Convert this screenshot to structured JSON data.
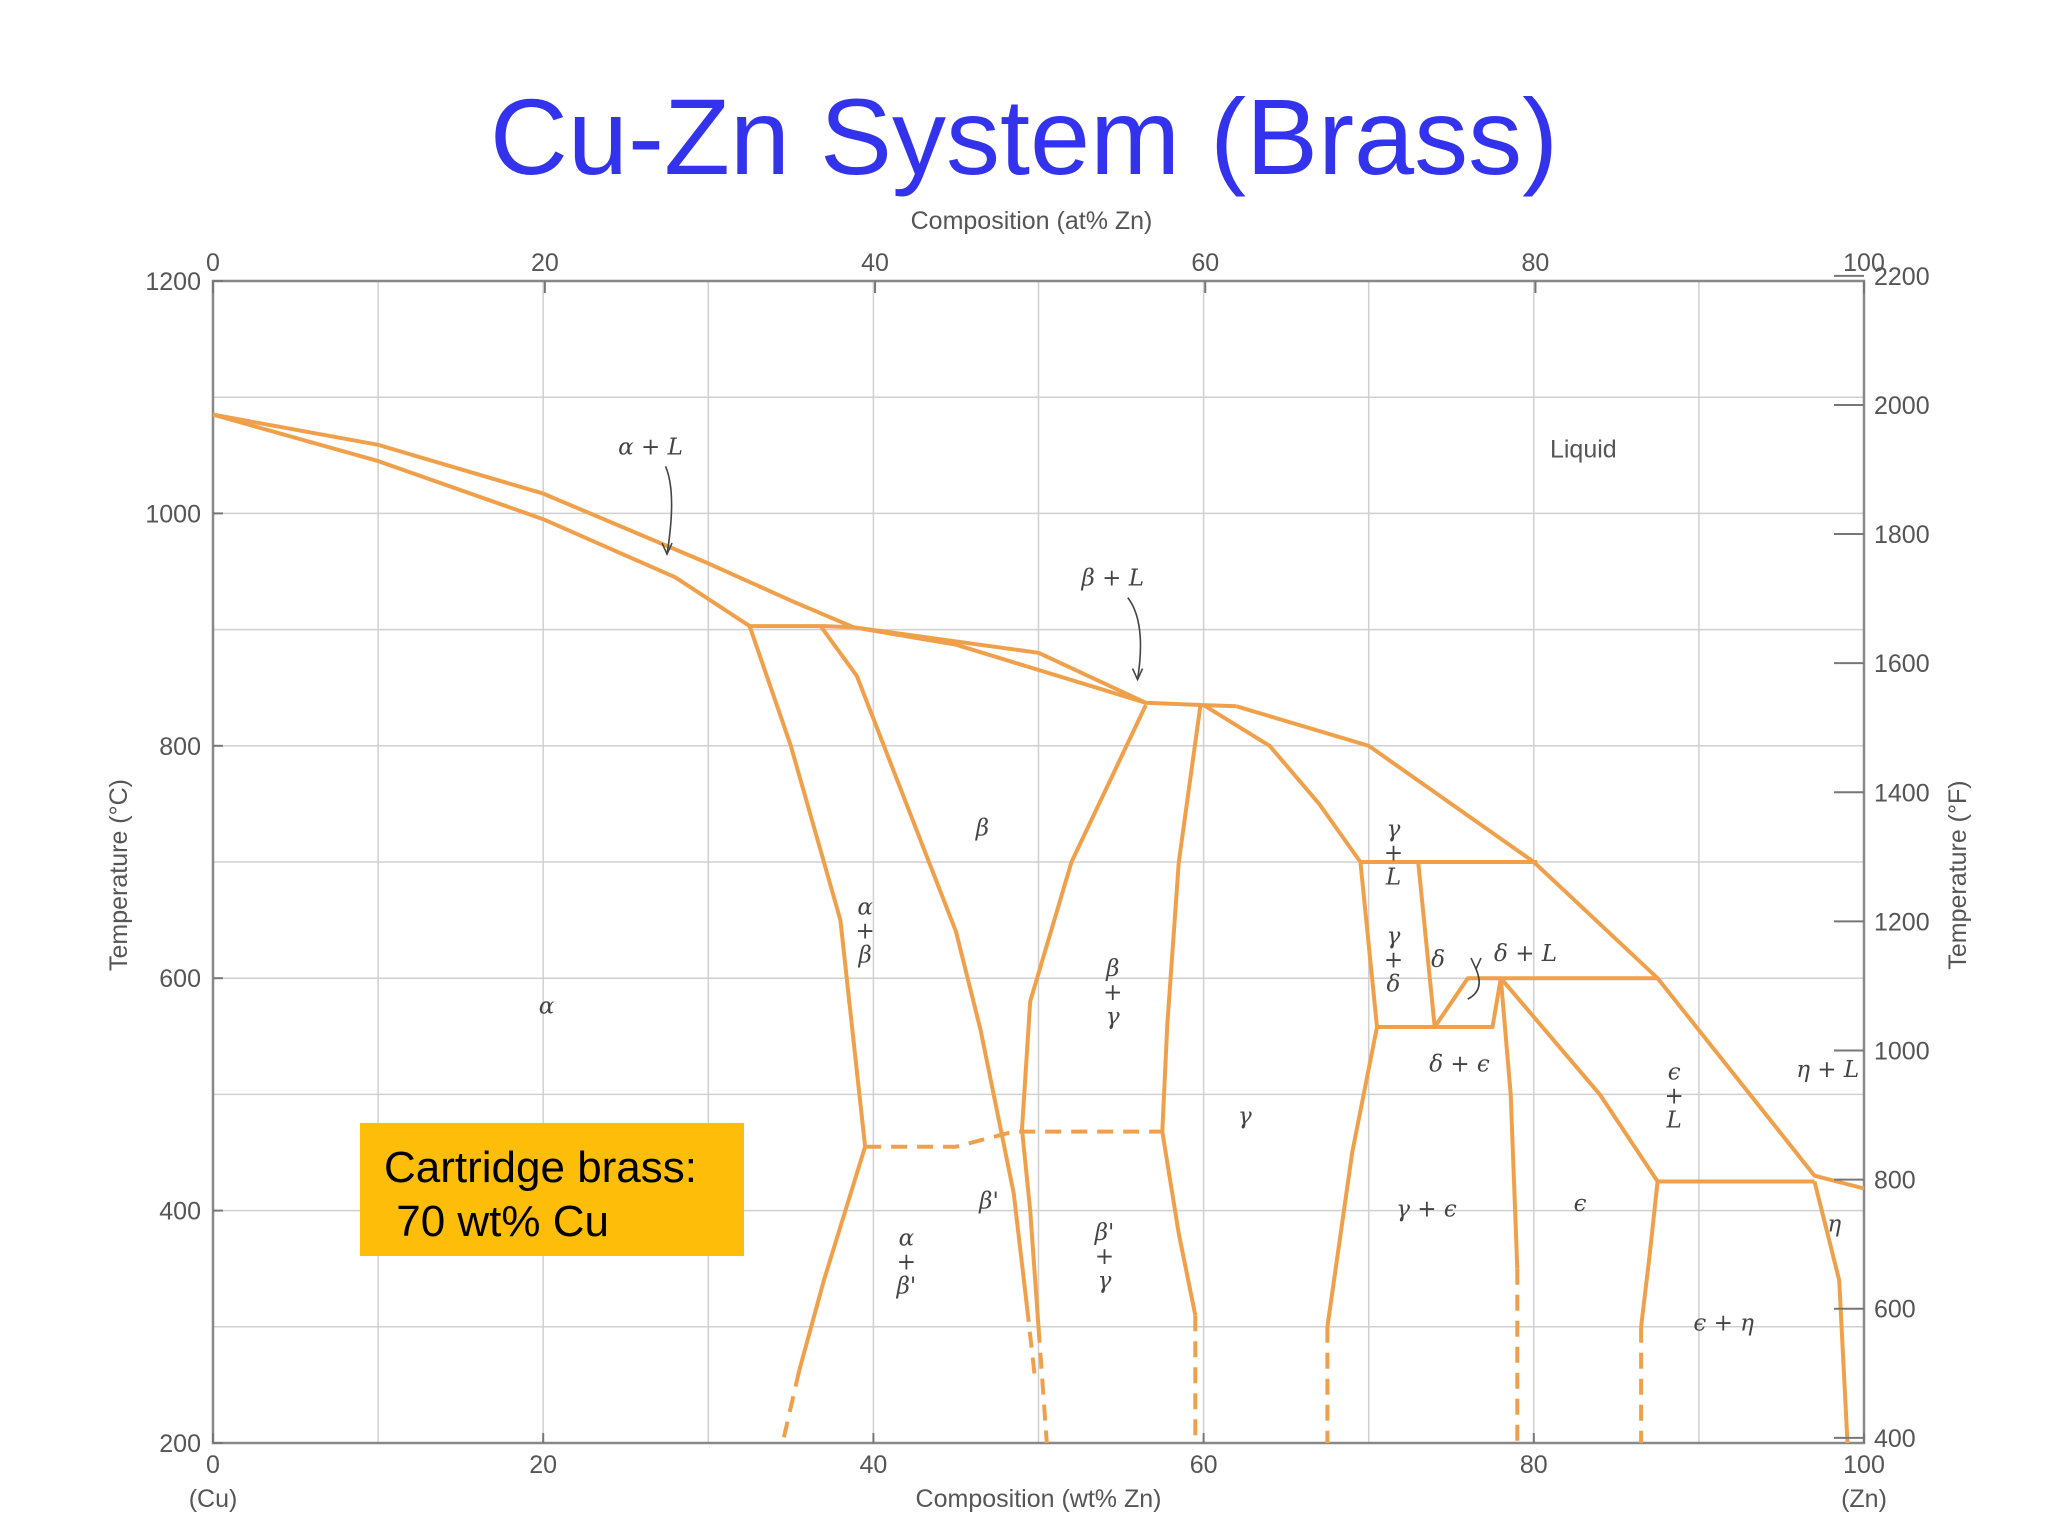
{
  "title": "Cu-Zn System (Brass)",
  "annotation": {
    "line1": "Cartridge brass:",
    "line2": " 70 wt% Cu"
  },
  "colors": {
    "phase_line": "#f0a04a",
    "title": "#3333ee",
    "annotation_bg": "#fdbd08"
  },
  "chart_data": {
    "type": "phase-diagram",
    "title": "",
    "xlabel": "Composition (wt% Zn)",
    "x2label": "Composition (at% Zn)",
    "ylabel": "Temperature (°C)",
    "y2label": "Temperature (°F)",
    "xlim": [
      0,
      100
    ],
    "ylim": [
      200,
      1200
    ],
    "y2lim": [
      392,
      2192
    ],
    "x_ticks": [
      "0",
      "20",
      "40",
      "60",
      "80",
      "100"
    ],
    "x_end_labels": {
      "left": "(Cu)",
      "right": "(Zn)"
    },
    "x2_ticks": [
      {
        "label": "0",
        "wt": 0
      },
      {
        "label": "20",
        "wt": 20.1
      },
      {
        "label": "40",
        "wt": 40.1
      },
      {
        "label": "60",
        "wt": 60.1
      },
      {
        "label": "80",
        "wt": 80.1
      },
      {
        "label": "100",
        "wt": 100
      }
    ],
    "y_ticks": [
      "200",
      "400",
      "600",
      "800",
      "1000",
      "1200"
    ],
    "y2_ticks": [
      "400",
      "600",
      "800",
      "1000",
      "1200",
      "1400",
      "1600",
      "1800",
      "2000",
      "2200"
    ],
    "grid": true,
    "boundaries": [
      {
        "style": "solid",
        "points": [
          [
            0,
            1085
          ],
          [
            10,
            1059
          ],
          [
            20,
            1017
          ],
          [
            30,
            957
          ],
          [
            35,
            925
          ],
          [
            38.8,
            902
          ]
        ]
      },
      {
        "style": "solid",
        "points": [
          [
            0,
            1085
          ],
          [
            10,
            1045
          ],
          [
            20,
            995
          ],
          [
            28,
            945
          ],
          [
            32.5,
            903
          ]
        ]
      },
      {
        "style": "solid",
        "points": [
          [
            32.5,
            903
          ],
          [
            37,
            903
          ],
          [
            38.8,
            902
          ],
          [
            50,
            880
          ],
          [
            56.5,
            837
          ],
          [
            60,
            835
          ],
          [
            62,
            834
          ]
        ]
      },
      {
        "style": "solid",
        "points": [
          [
            38.8,
            902
          ],
          [
            45,
            887
          ],
          [
            56.5,
            837
          ]
        ]
      },
      {
        "style": "solid",
        "points": [
          [
            32.5,
            903
          ],
          [
            35,
            800
          ],
          [
            38,
            650
          ],
          [
            39.5,
            455
          ]
        ]
      },
      {
        "style": "solid",
        "points": [
          [
            36.8,
            903
          ],
          [
            39,
            860
          ],
          [
            42,
            750
          ],
          [
            45,
            640
          ],
          [
            46.5,
            555
          ],
          [
            48.5,
            415
          ],
          [
            49.3,
            318
          ]
        ]
      },
      {
        "style": "dashed",
        "points": [
          [
            49.3,
            318
          ],
          [
            49.8,
            254
          ]
        ]
      },
      {
        "style": "solid",
        "points": [
          [
            39.5,
            455
          ],
          [
            37,
            340
          ],
          [
            35.5,
            262
          ]
        ]
      },
      {
        "style": "dashed",
        "points": [
          [
            35.5,
            262
          ],
          [
            34.5,
            200
          ]
        ]
      },
      {
        "style": "dashed",
        "points": [
          [
            39.5,
            455
          ],
          [
            45,
            455
          ],
          [
            48.5,
            468
          ],
          [
            57.5,
            468
          ]
        ]
      },
      {
        "style": "solid",
        "points": [
          [
            56.5,
            835
          ],
          [
            52,
            700
          ],
          [
            49.5,
            580
          ],
          [
            49,
            470
          ],
          [
            49.5,
            400
          ],
          [
            50,
            300
          ]
        ]
      },
      {
        "style": "dashed",
        "points": [
          [
            50,
            300
          ],
          [
            50.5,
            200
          ]
        ]
      },
      {
        "style": "solid",
        "points": [
          [
            59.8,
            834
          ],
          [
            58.5,
            700
          ],
          [
            57.8,
            560
          ],
          [
            57.5,
            468
          ],
          [
            58.5,
            380
          ],
          [
            59.5,
            310
          ]
        ]
      },
      {
        "style": "dashed",
        "points": [
          [
            59.5,
            310
          ],
          [
            59.5,
            200
          ]
        ]
      },
      {
        "style": "solid",
        "points": [
          [
            60,
            835
          ],
          [
            64,
            800
          ],
          [
            67,
            750
          ],
          [
            69.5,
            700
          ]
        ]
      },
      {
        "style": "solid",
        "points": [
          [
            62,
            834
          ],
          [
            70,
            800
          ],
          [
            80,
            700
          ],
          [
            87.5,
            600
          ],
          [
            97,
            430
          ],
          [
            100,
            419
          ]
        ]
      },
      {
        "style": "solid",
        "points": [
          [
            69.5,
            700
          ],
          [
            73,
            700
          ],
          [
            80.2,
            700
          ]
        ]
      },
      {
        "style": "solid",
        "points": [
          [
            69.5,
            700
          ],
          [
            70.5,
            558
          ],
          [
            69,
            450
          ],
          [
            67.5,
            300
          ]
        ]
      },
      {
        "style": "dashed",
        "points": [
          [
            67.5,
            300
          ],
          [
            67.5,
            200
          ]
        ]
      },
      {
        "style": "solid",
        "points": [
          [
            73,
            700
          ],
          [
            74,
            558
          ]
        ]
      },
      {
        "style": "solid",
        "points": [
          [
            74,
            558
          ],
          [
            76,
            600
          ],
          [
            78,
            600
          ],
          [
            87.5,
            600
          ]
        ]
      },
      {
        "style": "solid",
        "points": [
          [
            70.5,
            558
          ],
          [
            77.5,
            558
          ],
          [
            78,
            600
          ]
        ]
      },
      {
        "style": "solid",
        "points": [
          [
            78,
            600
          ],
          [
            78.6,
            500
          ],
          [
            79,
            350
          ]
        ]
      },
      {
        "style": "dashed",
        "points": [
          [
            79,
            350
          ],
          [
            79,
            200
          ]
        ]
      },
      {
        "style": "solid",
        "points": [
          [
            78,
            600
          ],
          [
            84,
            500
          ],
          [
            87.5,
            425
          ]
        ]
      },
      {
        "style": "solid",
        "points": [
          [
            87.5,
            425
          ],
          [
            97,
            425
          ]
        ]
      },
      {
        "style": "solid",
        "points": [
          [
            87.5,
            425
          ],
          [
            87,
            360
          ],
          [
            86.5,
            300
          ]
        ]
      },
      {
        "style": "dashed",
        "points": [
          [
            86.5,
            300
          ],
          [
            86.5,
            200
          ]
        ]
      },
      {
        "style": "solid",
        "points": [
          [
            97,
            425
          ],
          [
            98.5,
            340
          ],
          [
            99,
            200
          ]
        ]
      }
    ],
    "regions": [
      {
        "label": "α",
        "x": 20.2,
        "y": 575
      },
      {
        "label": "β",
        "x": 46.6,
        "y": 728
      },
      {
        "label": "γ",
        "x": 62.5,
        "y": 480
      },
      {
        "label": "δ",
        "x": 74.2,
        "y": 615
      },
      {
        "label": "ϵ",
        "x": 82.8,
        "y": 405
      },
      {
        "label": "η",
        "x": 98.2,
        "y": 387
      },
      {
        "label": "Liquid",
        "x": 83,
        "y": 1054
      },
      {
        "label": "β'",
        "x": 47,
        "y": 407
      },
      {
        "label": "γ + ϵ",
        "x": 73.5,
        "y": 400
      },
      {
        "label": "ϵ + η",
        "x": 91.5,
        "y": 302
      },
      {
        "label": "δ + ϵ",
        "x": 75.5,
        "y": 525
      },
      {
        "label": "δ + L",
        "x": 79.5,
        "y": 620
      },
      {
        "label": "η + L",
        "x": 97.8,
        "y": 520
      }
    ],
    "stacked_regions": [
      {
        "parts": [
          "α",
          "+",
          "β"
        ],
        "x": 39.5,
        "y": 660
      },
      {
        "parts": [
          "β",
          "+",
          "γ"
        ],
        "x": 54.5,
        "y": 607
      },
      {
        "parts": [
          "γ",
          "+",
          "δ"
        ],
        "x": 71.5,
        "y": 635
      },
      {
        "parts": [
          "γ",
          "+",
          "L"
        ],
        "x": 71.5,
        "y": 727
      },
      {
        "parts": [
          "ϵ",
          "+",
          "L"
        ],
        "x": 88.5,
        "y": 518
      },
      {
        "parts": [
          "α",
          "+",
          "β'"
        ],
        "x": 42,
        "y": 375
      },
      {
        "parts": [
          "β'",
          "+",
          "γ"
        ],
        "x": 54,
        "y": 380
      }
    ],
    "arrow_labels": [
      {
        "label": "α + L",
        "x": 26.5,
        "y": 1056,
        "arrow_to": [
          27.5,
          965
        ]
      },
      {
        "label": "β + L",
        "x": 54.5,
        "y": 943,
        "arrow_to": [
          56,
          857
        ]
      },
      {
        "label": "",
        "x": 76,
        "y": 582,
        "arrow_to": [
          76.5,
          608
        ]
      }
    ]
  }
}
